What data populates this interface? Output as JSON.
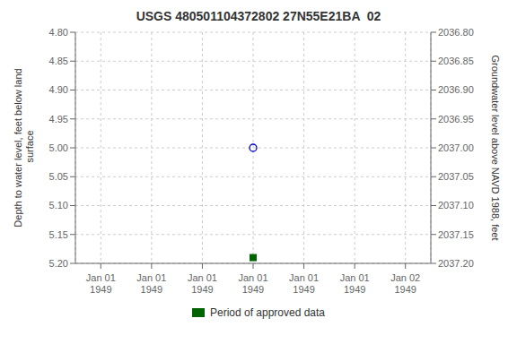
{
  "chart_data": {
    "type": "scatter",
    "title": "USGS 480501104372802 27N55E21BA  02",
    "ylabel": "Depth to water level, feet below land\n surface",
    "y2label": "Groundwater level above NAVD 1988, feet",
    "categories": [
      "Jan 01\n1949",
      "Jan 01\n1949",
      "Jan 01\n1949",
      "Jan 01\n1949",
      "Jan 01\n1949",
      "Jan 01\n1949",
      "Jan 02\n1949"
    ],
    "series": [
      {
        "color": "#0000cd",
        "marker": "open_circle",
        "values": [
          null,
          null,
          null,
          5.0,
          null,
          null,
          null
        ]
      },
      {
        "name": "Period of approved data",
        "color": "#006400",
        "marker": "square",
        "values": [
          null,
          null,
          null,
          5.19,
          null,
          null,
          null
        ]
      }
    ],
    "ylim": [
      5.2,
      4.8
    ],
    "yticks": [
      {
        "value": 4.8,
        "label": "4.80"
      },
      {
        "value": 4.85,
        "label": "4.85"
      },
      {
        "value": 4.9,
        "label": "4.90"
      },
      {
        "value": 4.95,
        "label": "4.95"
      },
      {
        "value": 5.0,
        "label": "5.00"
      },
      {
        "value": 5.05,
        "label": "5.05"
      },
      {
        "value": 5.1,
        "label": "5.10"
      },
      {
        "value": 5.15,
        "label": "5.15"
      },
      {
        "value": 5.2,
        "label": "5.20"
      }
    ],
    "y2lim": [
      2037.2,
      2036.8
    ],
    "y2ticks": [
      {
        "value": 2037.2,
        "label": "2037.20"
      },
      {
        "value": 2037.15,
        "label": "2037.15"
      },
      {
        "value": 2037.1,
        "label": "2037.10"
      },
      {
        "value": 2037.05,
        "label": "2037.05"
      },
      {
        "value": 2037.0,
        "label": "2037.00"
      },
      {
        "value": 2036.95,
        "label": "2036.95"
      },
      {
        "value": 2036.9,
        "label": "2036.90"
      },
      {
        "value": 2036.85,
        "label": "2036.85"
      },
      {
        "value": 2036.8,
        "label": "2036.80"
      }
    ],
    "grid": true,
    "legend": "bottom"
  }
}
